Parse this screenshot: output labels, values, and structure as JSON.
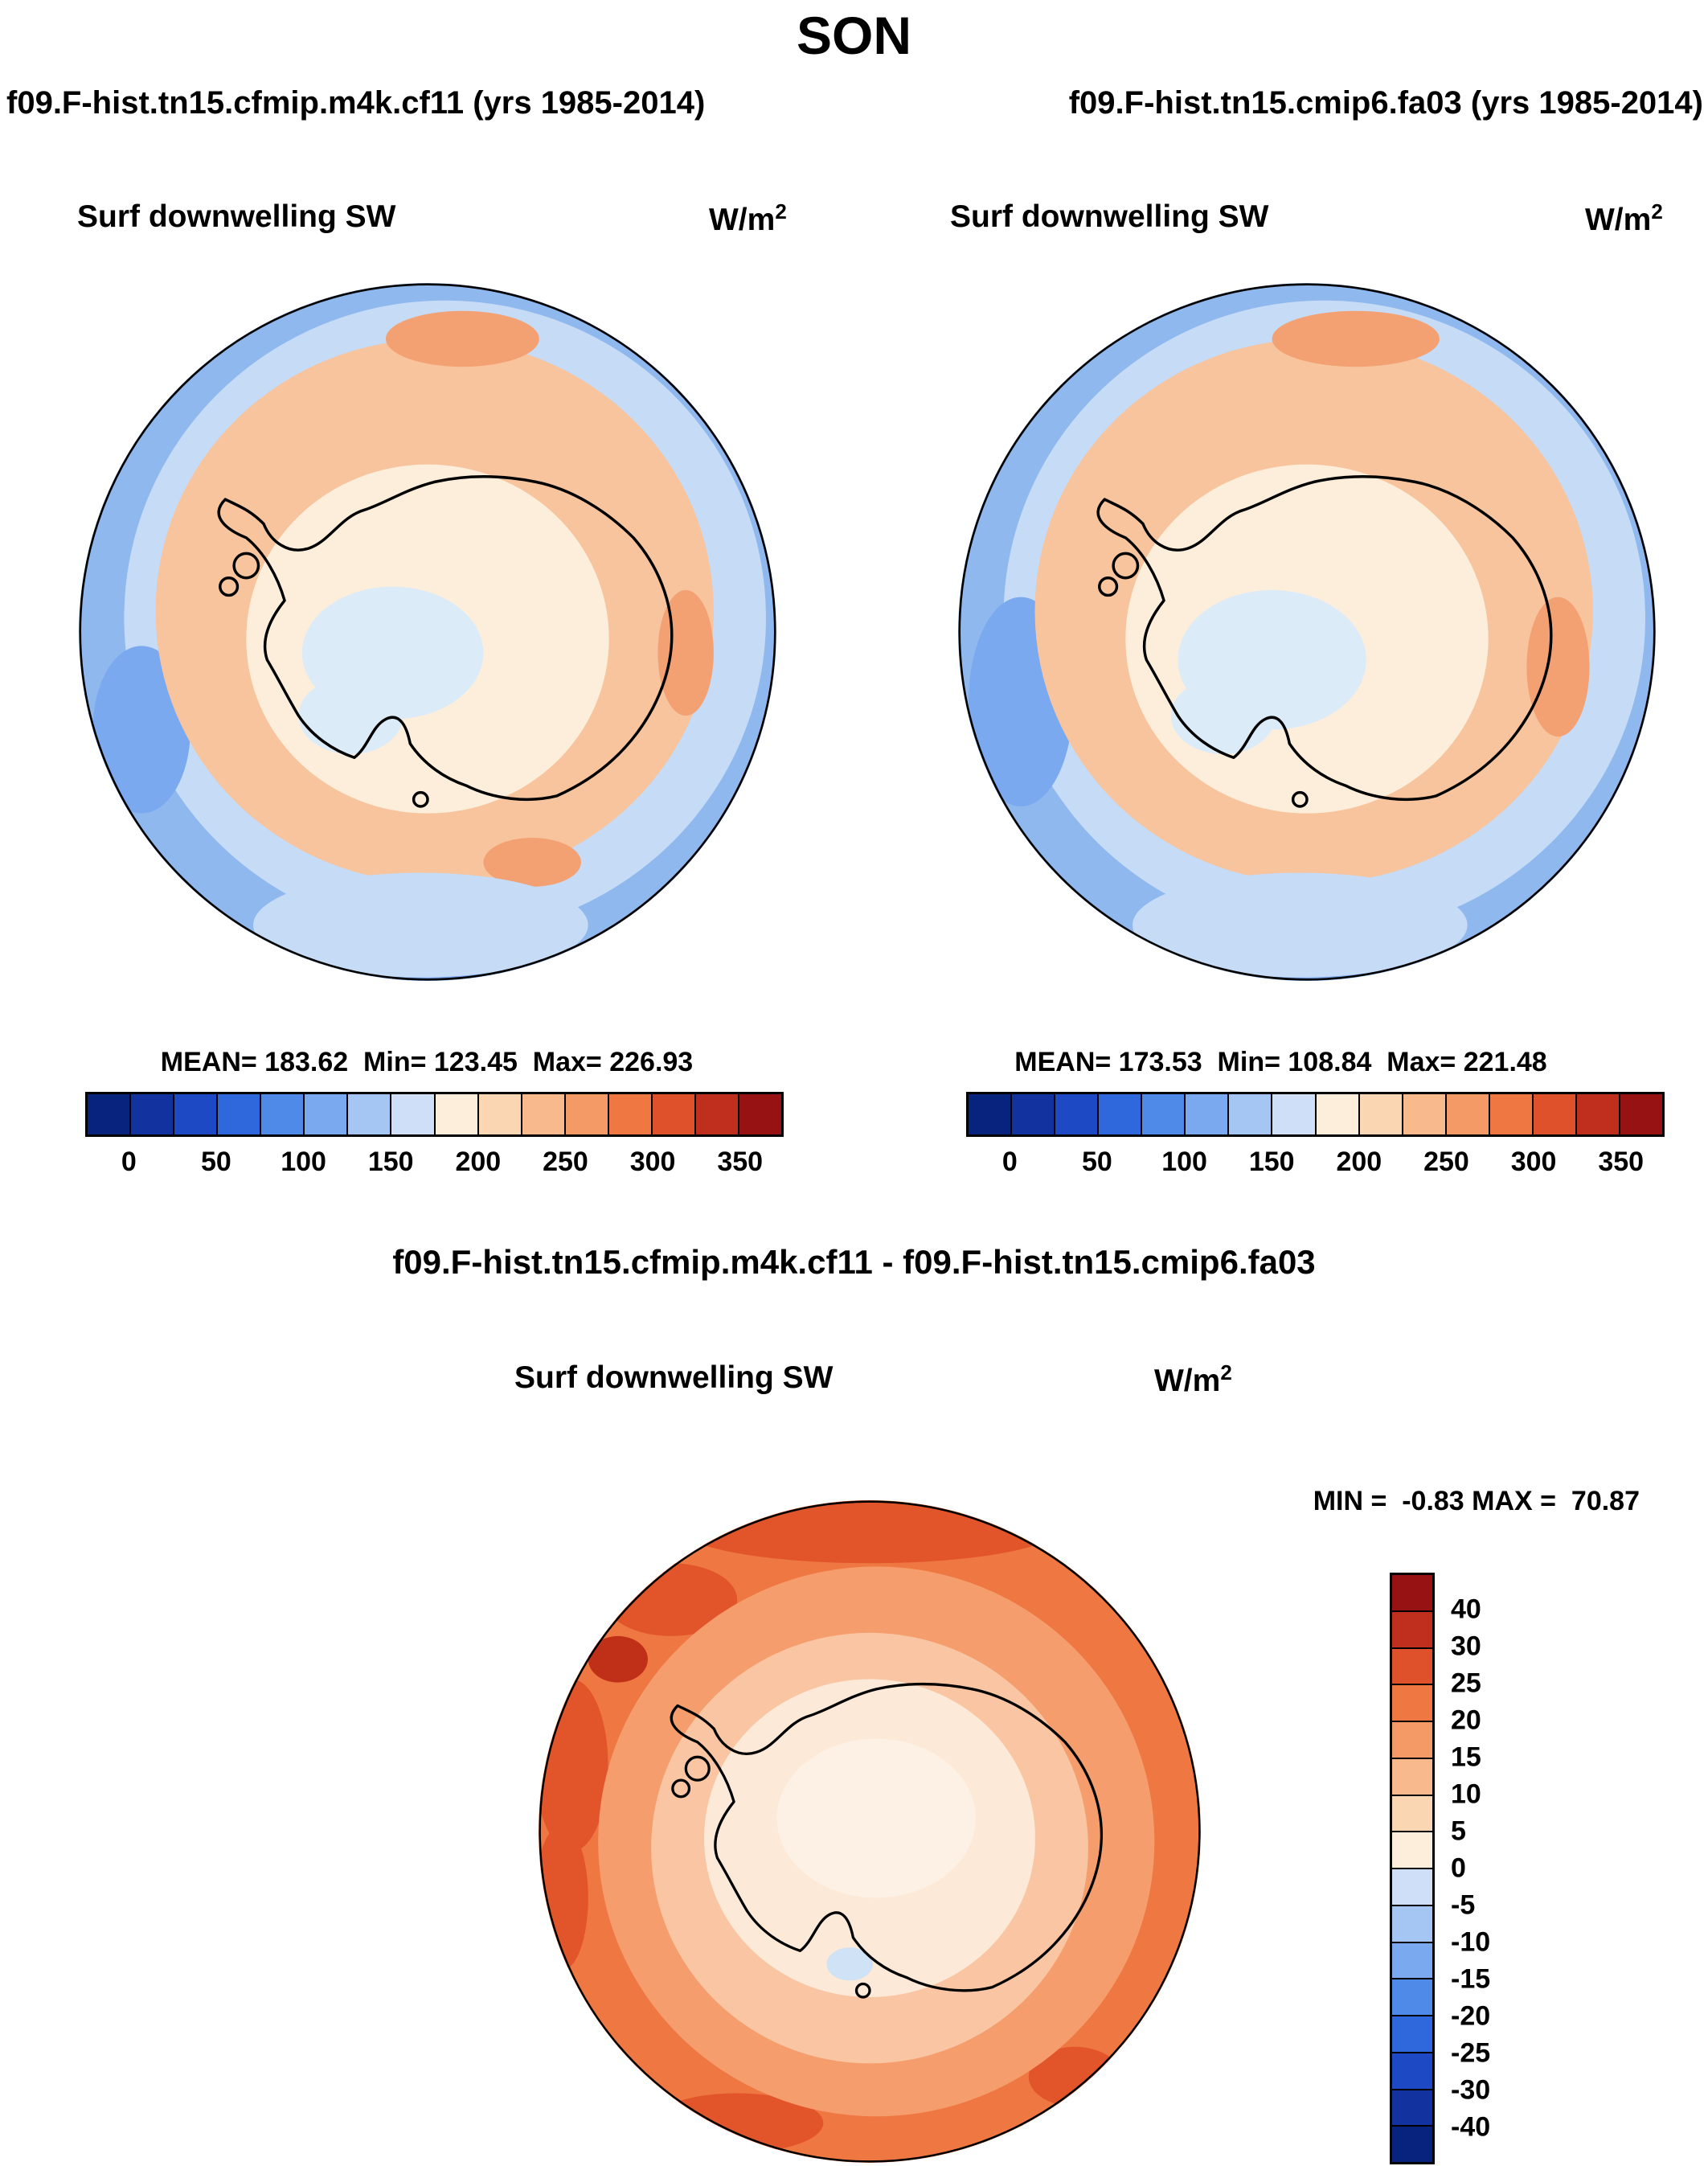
{
  "page_title": "SON",
  "panels": {
    "left": {
      "header": "f09.F-hist.tn15.cfmip.m4k.cf11 (yrs 1985-2014)",
      "subtitle": "Surf downwelling SW",
      "units_base": "W/m",
      "units_exp": "2",
      "stats": "MEAN= 183.62  Min= 123.45  Max= 226.93"
    },
    "right": {
      "header": "f09.F-hist.tn15.cmip6.fa03 (yrs 1985-2014)",
      "subtitle": "Surf downwelling SW",
      "units_base": "W/m",
      "units_exp": "2",
      "stats": "MEAN= 173.53  Min= 108.84  Max= 221.48"
    },
    "diff": {
      "header": "f09.F-hist.tn15.cfmip.m4k.cf11 - f09.F-hist.tn15.cmip6.fa03",
      "subtitle": "Surf downwelling SW",
      "units_base": "W/m",
      "units_exp": "2",
      "stats": "MIN =  -0.83 MAX =  70.87"
    }
  },
  "colorbar": {
    "h_ticks": [
      "0",
      "50",
      "100",
      "150",
      "200",
      "250",
      "300",
      "350"
    ],
    "v_labels": [
      "40",
      "30",
      "25",
      "20",
      "15",
      "10",
      "5",
      "0",
      "-5",
      "-10",
      "-15",
      "-20",
      "-25",
      "-30",
      "-40"
    ],
    "diverging16": [
      "#08237e",
      "#12339f",
      "#1d4ac4",
      "#2f68dc",
      "#4f8ae8",
      "#7aa9ef",
      "#a5c6f3",
      "#cfdff7",
      "#fdeedc",
      "#fbd6b3",
      "#f8ba8d",
      "#f49a66",
      "#ee7742",
      "#df512b",
      "#c02f1d",
      "#971212"
    ]
  },
  "map_colors": {
    "top": {
      "outer_blue": "#8fb8ee",
      "band_blue": "#c6dbf5",
      "deep_blue_blob": "#7aa9ef",
      "ring_orange": "#f7c49d",
      "ring_accent": "#f3a173",
      "interior": "#fdeedc",
      "center_blue": "#dcebf8"
    },
    "diff": {
      "outer": "#ee7742",
      "outer_accent": "#e2552a",
      "dark_spot": "#c03018",
      "ring_mid": "#f59d6c",
      "ring_light": "#f9c5a3",
      "interior": "#fde9d7",
      "center_pale": "#fdf1e5",
      "blue_spot": "#cfe2f6"
    }
  },
  "chart_data": {
    "type": "heatmap",
    "subtype": "south-polar-stereographic-filled-contour-maps",
    "season_title": "SON",
    "region": "Antarctica (south polar view)",
    "variable": "Surf downwelling SW",
    "units": "W/m2",
    "panels": [
      {
        "title": "f09.F-hist.tn15.cfmip.m4k.cf11 (yrs 1985-2014)",
        "mean": 183.62,
        "min": 123.45,
        "max": 226.93,
        "contour_levels": [
          0,
          25,
          50,
          75,
          100,
          125,
          150,
          175,
          200,
          225,
          250,
          275,
          300,
          325,
          350
        ],
        "colorbar_tick_labels": [
          0,
          50,
          100,
          150,
          200,
          250,
          300,
          350
        ],
        "legend_position": "bottom"
      },
      {
        "title": "f09.F-hist.tn15.cmip6.fa03 (yrs 1985-2014)",
        "mean": 173.53,
        "min": 108.84,
        "max": 221.48,
        "contour_levels": [
          0,
          25,
          50,
          75,
          100,
          125,
          150,
          175,
          200,
          225,
          250,
          275,
          300,
          325,
          350
        ],
        "colorbar_tick_labels": [
          0,
          50,
          100,
          150,
          200,
          250,
          300,
          350
        ],
        "legend_position": "bottom"
      },
      {
        "title": "f09.F-hist.tn15.cfmip.m4k.cf11 - f09.F-hist.tn15.cmip6.fa03",
        "min": -0.83,
        "max": 70.87,
        "contour_levels": [
          -40,
          -30,
          -25,
          -20,
          -15,
          -10,
          -5,
          0,
          5,
          10,
          15,
          20,
          25,
          30,
          40
        ],
        "legend_position": "right"
      }
    ],
    "palette_blue_to_red": [
      "#08237e",
      "#12339f",
      "#1d4ac4",
      "#2f68dc",
      "#4f8ae8",
      "#7aa9ef",
      "#a5c6f3",
      "#cfdff7",
      "#fdeedc",
      "#fbd6b3",
      "#f8ba8d",
      "#f49a66",
      "#ee7742",
      "#df512b",
      "#c02f1d",
      "#971212"
    ]
  }
}
